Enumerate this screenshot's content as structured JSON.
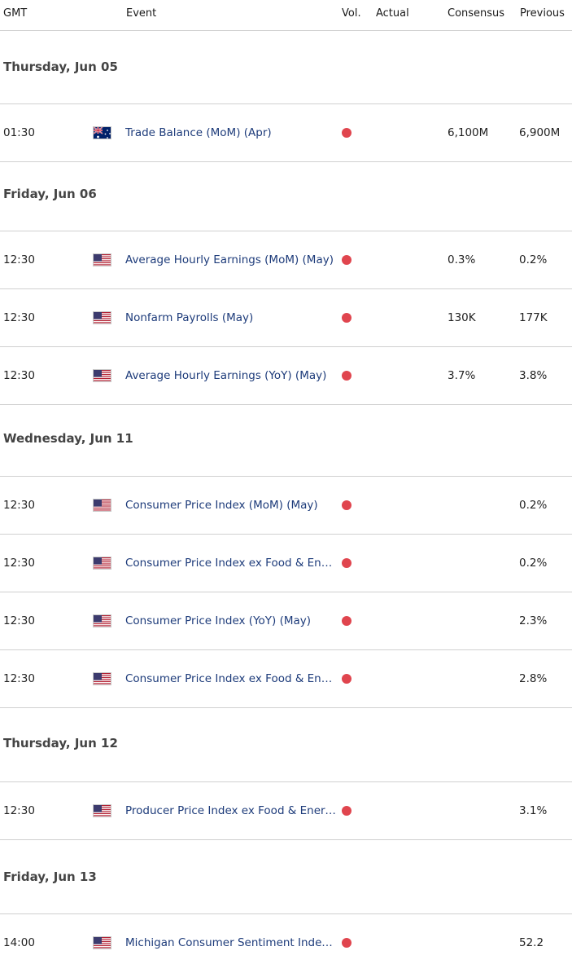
{
  "header": {
    "gmt": "GMT",
    "event": "Event",
    "vol": "Vol.",
    "actual": "Actual",
    "consensus": "Consensus",
    "previous": "Previous"
  },
  "colors": {
    "volatility_dot": "#e0454e",
    "event_text": "#1d3b7a"
  },
  "days": [
    {
      "label": "Thursday, Jun 05",
      "events": [
        {
          "time": "01:30",
          "country": "AU",
          "flag_icon": "australia-flag-icon",
          "name": "Trade Balance (MoM) (Apr)",
          "actual": "",
          "consensus": "6,100M",
          "previous": "6,900M"
        }
      ]
    },
    {
      "label": "Friday, Jun 06",
      "events": [
        {
          "time": "12:30",
          "country": "US",
          "flag_icon": "us-flag-icon",
          "name": "Average Hourly Earnings (MoM) (May)",
          "actual": "",
          "consensus": "0.3%",
          "previous": "0.2%"
        },
        {
          "time": "12:30",
          "country": "US",
          "flag_icon": "us-flag-icon",
          "name": "Nonfarm Payrolls (May)",
          "actual": "",
          "consensus": "130K",
          "previous": "177K"
        },
        {
          "time": "12:30",
          "country": "US",
          "flag_icon": "us-flag-icon",
          "name": "Average Hourly Earnings (YoY) (May)",
          "actual": "",
          "consensus": "3.7%",
          "previous": "3.8%"
        }
      ]
    },
    {
      "label": "Wednesday, Jun 11",
      "events": [
        {
          "time": "12:30",
          "country": "US",
          "flag_icon": "us-flag-icon",
          "name": "Consumer Price Index (MoM) (May)",
          "actual": "",
          "consensus": "",
          "previous": "0.2%"
        },
        {
          "time": "12:30",
          "country": "US",
          "flag_icon": "us-flag-icon",
          "name": "Consumer Price Index ex Food & Energy (MoM) (May)",
          "actual": "",
          "consensus": "",
          "previous": "0.2%"
        },
        {
          "time": "12:30",
          "country": "US",
          "flag_icon": "us-flag-icon",
          "name": "Consumer Price Index (YoY) (May)",
          "actual": "",
          "consensus": "",
          "previous": "2.3%"
        },
        {
          "time": "12:30",
          "country": "US",
          "flag_icon": "us-flag-icon",
          "name": "Consumer Price Index ex Food & Energy (YoY) (May)",
          "actual": "",
          "consensus": "",
          "previous": "2.8%"
        }
      ]
    },
    {
      "label": "Thursday, Jun 12",
      "events": [
        {
          "time": "12:30",
          "country": "US",
          "flag_icon": "us-flag-icon",
          "name": "Producer Price Index ex Food & Energy (YoY) (May)",
          "actual": "",
          "consensus": "",
          "previous": "3.1%"
        }
      ]
    },
    {
      "label": "Friday, Jun 13",
      "events": [
        {
          "time": "14:00",
          "country": "US",
          "flag_icon": "us-flag-icon",
          "name": "Michigan Consumer Sentiment Index (Jun)",
          "actual": "",
          "consensus": "",
          "previous": "52.2"
        }
      ]
    }
  ]
}
